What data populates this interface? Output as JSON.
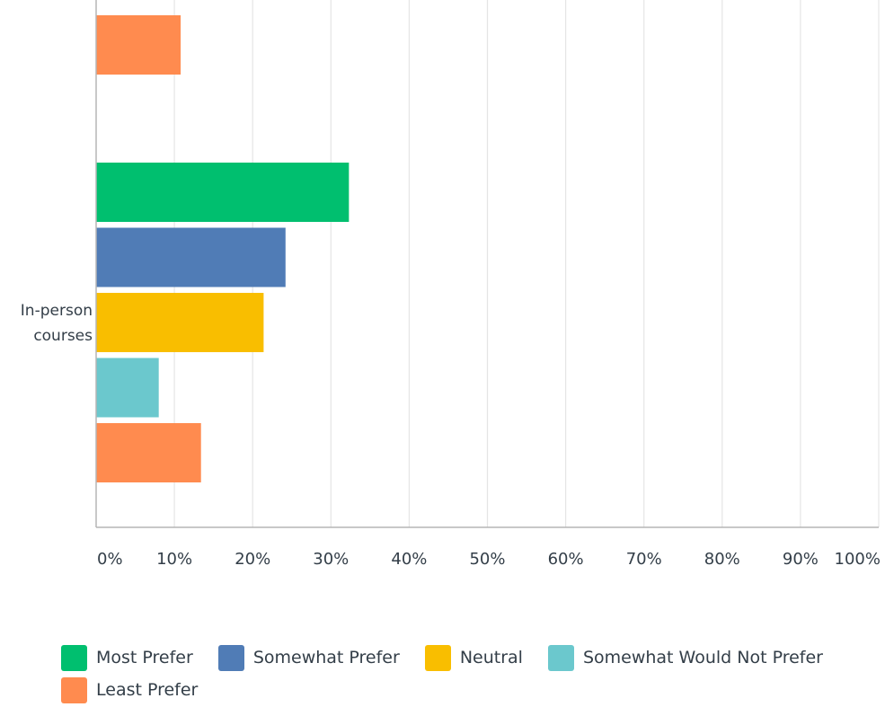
{
  "chart_data": {
    "type": "bar",
    "orientation": "horizontal",
    "categories": [
      "",
      "In-person courses"
    ],
    "category_label_lines": [
      [],
      [
        "In-person",
        "courses"
      ]
    ],
    "series": [
      {
        "name": "Most Prefer",
        "color": "#00bf6f",
        "values": [
          null,
          32.3
        ]
      },
      {
        "name": "Somewhat Prefer",
        "color": "#507cb6",
        "values": [
          null,
          24.2
        ]
      },
      {
        "name": "Neutral",
        "color": "#f9be00",
        "values": [
          null,
          21.4
        ]
      },
      {
        "name": "Somewhat Would Not Prefer",
        "color": "#6bc8cd",
        "values": [
          null,
          8.0
        ]
      },
      {
        "name": "Least Prefer",
        "color": "#ff8b4f",
        "values": [
          10.8,
          13.4
        ]
      }
    ],
    "xlim": [
      0,
      100
    ],
    "x_ticks": [
      "0%",
      "10%",
      "20%",
      "30%",
      "40%",
      "50%",
      "60%",
      "70%",
      "80%",
      "90%",
      "100%"
    ],
    "grid": true,
    "legend_position": "bottom"
  }
}
